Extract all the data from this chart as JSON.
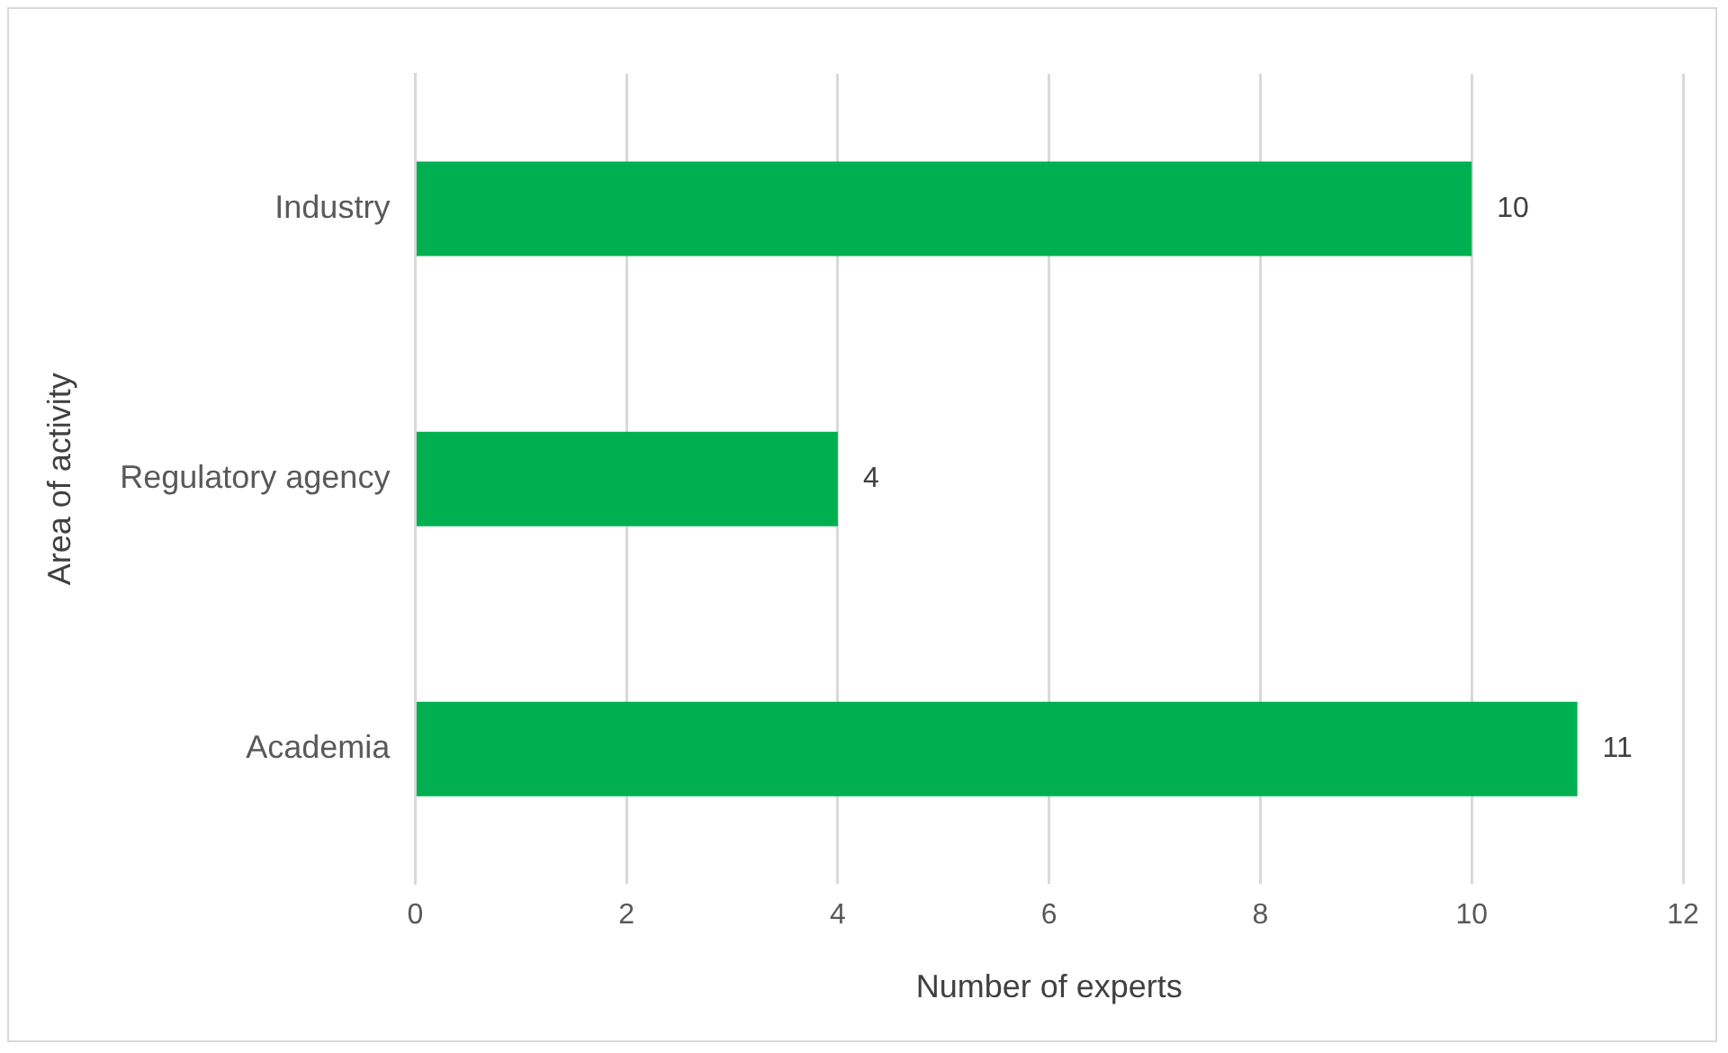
{
  "chart_data": {
    "type": "bar",
    "orientation": "horizontal",
    "xlabel": "Number of experts",
    "ylabel": "Area of activity",
    "categories": [
      "Industry",
      "Regulatory agency",
      "Academia"
    ],
    "values": [
      10,
      4,
      11
    ],
    "color": "#00b050",
    "xlim": [
      0,
      12
    ],
    "xticks": [
      0,
      2,
      4,
      6,
      8,
      10,
      12
    ],
    "grid": "x",
    "data_labels": true
  }
}
